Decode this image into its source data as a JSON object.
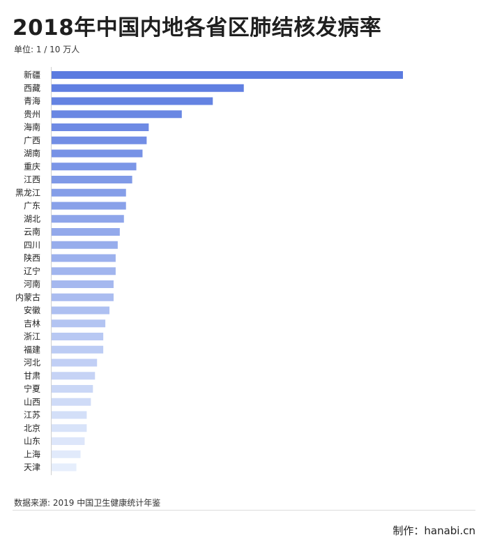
{
  "header": {
    "title": "2018年中国内地各省区肺结核发病率",
    "unit": "单位: 1 / 10 万人"
  },
  "footer": {
    "source": "数据来源: 2019 中国卫生健康统计年鉴",
    "credit": "制作：hanabi.cn"
  },
  "colors": {
    "bar_dark": "#5b7be0",
    "bar_light": "#e6eefc"
  },
  "chart_data": {
    "type": "bar",
    "orientation": "horizontal",
    "title": "2018年中国内地各省区肺结核发病率",
    "xlabel": "",
    "ylabel": "",
    "xlim": [
      0,
      170
    ],
    "grid": false,
    "categories": [
      "新疆",
      "西藏",
      "青海",
      "贵州",
      "海南",
      "广西",
      "湖南",
      "重庆",
      "江西",
      "黑龙江",
      "广东",
      "湖北",
      "云南",
      "四川",
      "陕西",
      "辽宁",
      "河南",
      "内蒙古",
      "安徽",
      "吉林",
      "浙江",
      "福建",
      "河北",
      "甘肃",
      "宁夏",
      "山西",
      "江苏",
      "北京",
      "山东",
      "上海",
      "天津"
    ],
    "values": [
      170,
      93,
      78,
      63,
      47,
      46,
      44,
      41,
      39,
      36,
      36,
      35,
      33,
      32,
      31,
      31,
      30,
      30,
      28,
      26,
      25,
      25,
      22,
      21,
      20,
      19,
      17,
      17,
      16,
      14,
      12
    ]
  }
}
